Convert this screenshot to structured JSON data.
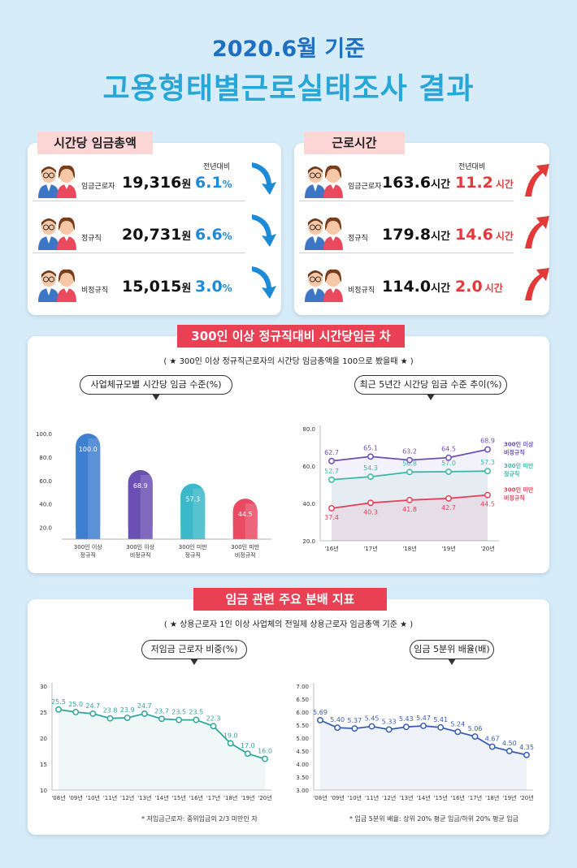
{
  "header": {
    "line1": "2020.6월 기준",
    "line2": "고용형태별근로실태조사 결과"
  },
  "wage_panel": {
    "title": "시간당 임금총액",
    "yoy_label": "전년대비",
    "rows": [
      {
        "label": "임금근로자",
        "value": "19,316",
        "unit": "원",
        "change": "6.1",
        "change_unit": "%"
      },
      {
        "label": "정규직",
        "value": "20,731",
        "unit": "원",
        "change": "6.6",
        "change_unit": "%"
      },
      {
        "label": "비정규직",
        "value": "15,015",
        "unit": "원",
        "change": "3.0",
        "change_unit": "%"
      }
    ]
  },
  "hours_panel": {
    "title": "근로시간",
    "yoy_label": "전년대비",
    "rows": [
      {
        "label": "임금근로자",
        "value": "163.6",
        "unit": "시간",
        "change": "11.2",
        "change_unit": "시간"
      },
      {
        "label": "정규직",
        "value": "179.8",
        "unit": "시간",
        "change": "14.6",
        "change_unit": "시간"
      },
      {
        "label": "비정규직",
        "value": "114.0",
        "unit": "시간",
        "change": "2.0",
        "change_unit": "시간"
      }
    ]
  },
  "gap_section": {
    "title": "300인 이상 정규직대비 시간당임금 차이",
    "note": "( ★ 300인 이상 정규직근로자의 시간당 임금총액을 100으로 봤을때 ★ )"
  },
  "dist_section": {
    "title": "임금 관련 주요 분배 지표",
    "note": "( ★ 상용근로자 1인 이상 사업체의 전일제 상용근로자 임금총액 기준 ★ )",
    "footnote_left": "* 저임금근로자: 중위임금의 2/3 미만인 자",
    "footnote_right": "* 임금 5분위 배율: 상위 20% 평균 임금/하위 20% 평균 임금"
  },
  "chart_data": [
    {
      "type": "bar",
      "title": "사업체규모별 시간당 임금 수준(%)",
      "categories": [
        "300인 이상\n정규직",
        "300인 이상\n비정규직",
        "300인 미만\n정규직",
        "300인 미만\n비정규직"
      ],
      "values": [
        100.0,
        68.9,
        57.3,
        44.5
      ],
      "value_labels": [
        "100.0",
        "68.9",
        "57.3",
        "44.5"
      ],
      "colors": [
        "#3f7fd0",
        "#6b4fb3",
        "#3bb8c9",
        "#ea4b63"
      ],
      "yticks": [
        "100.0",
        "80.0",
        "60.0",
        "40.0",
        "20.0"
      ],
      "ylim": [
        0,
        100
      ]
    },
    {
      "type": "line",
      "title": "최근 5년간 시간당 임금 수준 추이(%)",
      "x": [
        "'16년",
        "'17년",
        "'18년",
        "'19년",
        "'20년"
      ],
      "yticks": [
        "80.0",
        "60.0",
        "40.0",
        "20.0"
      ],
      "ylim": [
        20,
        80
      ],
      "series": [
        {
          "name": "300인 이상\n비정규직",
          "values": [
            62.7,
            65.1,
            63.2,
            64.5,
            68.9
          ],
          "labels": [
            "62.7",
            "65.1",
            "63.2",
            "64.5",
            "68.9"
          ],
          "color": "#6b4fb3"
        },
        {
          "name": "300인 미만\n정규직",
          "values": [
            52.7,
            54.3,
            56.8,
            57.0,
            57.3
          ],
          "labels": [
            "52.7",
            "54.3",
            "56.8",
            "57.0",
            "57.3"
          ],
          "color": "#3bb8a9"
        },
        {
          "name": "300인 미만\n비정규직",
          "values": [
            37.4,
            40.3,
            41.8,
            42.7,
            44.5
          ],
          "labels": [
            "37.4",
            "40.3",
            "41.8",
            "42.7",
            "44.5"
          ],
          "color": "#e0435a"
        }
      ]
    },
    {
      "type": "line",
      "title": "저임금 근로자 비중(%)",
      "x": [
        "'08년",
        "'09년",
        "'10년",
        "'11년",
        "'12년",
        "'13년",
        "'14년",
        "'15년",
        "'16년",
        "'17년",
        "'18년",
        "'19년",
        "'20년"
      ],
      "yticks": [
        "30",
        "25",
        "20",
        "15",
        "10"
      ],
      "ylim": [
        10,
        30
      ],
      "series": [
        {
          "values": [
            25.5,
            25.0,
            24.7,
            23.8,
            23.9,
            24.7,
            23.7,
            23.5,
            23.5,
            22.3,
            19.0,
            17.0,
            16.0
          ],
          "labels": [
            "25.5",
            "25.0",
            "24.7",
            "23.8",
            "23.9",
            "24.7",
            "23.7",
            "23.5",
            "23.5",
            "22.3",
            "19.0",
            "17.0",
            "16.0"
          ],
          "color": "#2fa79a"
        }
      ]
    },
    {
      "type": "line",
      "title": "임금 5분위 배율(배)",
      "x": [
        "'08년",
        "'09년",
        "'10년",
        "'11년",
        "'12년",
        "'13년",
        "'14년",
        "'15년",
        "'16년",
        "'17년",
        "'18년",
        "'19년",
        "'20년"
      ],
      "yticks": [
        "7.00",
        "6.50",
        "6.00",
        "5.50",
        "5.00",
        "4.50",
        "4.00",
        "3.50",
        "3.00"
      ],
      "ylim": [
        3.0,
        7.0
      ],
      "series": [
        {
          "values": [
            5.69,
            5.4,
            5.37,
            5.45,
            5.33,
            5.43,
            5.47,
            5.41,
            5.24,
            5.06,
            4.67,
            4.5,
            4.35
          ],
          "labels": [
            "5.69",
            "5.40",
            "5.37",
            "5.45",
            "5.33",
            "5.43",
            "5.47",
            "5.41",
            "5.24",
            "5.06",
            "4.67",
            "4.50",
            "4.35"
          ],
          "color": "#3a5fb0"
        }
      ]
    }
  ],
  "icons": {
    "avatar": "couple-avatar-icon",
    "down_arrow": "curved-down-arrow-icon",
    "up_arrow": "curved-up-arrow-icon"
  }
}
